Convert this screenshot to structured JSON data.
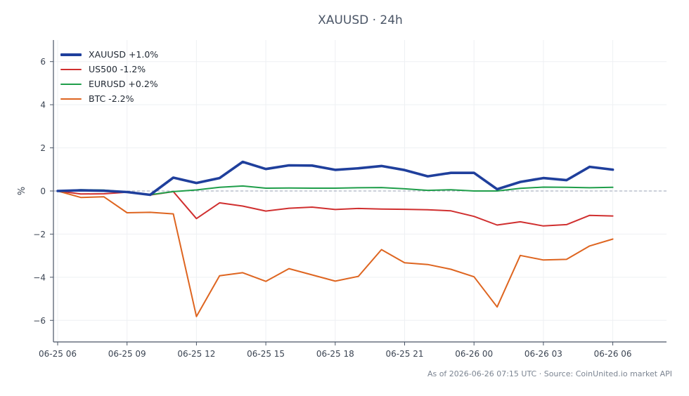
{
  "chart_data": {
    "type": "line",
    "title": "XAUUSD · 24h",
    "xlabel": "",
    "ylabel": "%",
    "ylim": [
      -7,
      7
    ],
    "grid": true,
    "legend_position": "top-left",
    "x_tick_labels": [
      "06-25 06",
      "06-25 09",
      "06-25 12",
      "06-25 15",
      "06-25 18",
      "06-25 21",
      "06-26 00",
      "06-26 03",
      "06-26 06"
    ],
    "y_ticks": [
      -6,
      -4,
      -2,
      0,
      2,
      4,
      6
    ],
    "y_tick_labels": [
      "−6",
      "−4",
      "−2",
      "0",
      "2",
      "4",
      "6"
    ],
    "x": [
      "06-25 07",
      "06-25 08",
      "06-25 09",
      "06-25 10",
      "06-25 11",
      "06-25 12",
      "06-25 13",
      "06-25 14",
      "06-25 15",
      "06-25 16",
      "06-25 17",
      "06-25 18",
      "06-25 19",
      "06-25 20",
      "06-25 21",
      "06-25 22",
      "06-25 23",
      "06-26 00",
      "06-26 01",
      "06-26 02",
      "06-26 03",
      "06-26 04",
      "06-26 05",
      "06-26 06",
      "06-26 07"
    ],
    "series": [
      {
        "name": "XAUUSD +1.0%",
        "color": "#1f3f9c",
        "values": [
          0,
          0.03,
          0.01,
          -0.05,
          -0.18,
          0.62,
          0.37,
          0.6,
          1.35,
          1.02,
          1.19,
          1.18,
          0.98,
          1.05,
          1.16,
          0.97,
          0.68,
          0.84,
          0.84,
          0.08,
          0.42,
          0.6,
          0.5,
          1.12,
          0.99
        ]
      },
      {
        "name": "US500 -1.2%",
        "color": "#d02f2f",
        "values": [
          0,
          -0.14,
          -0.13,
          -0.06,
          -0.19,
          -0.03,
          -1.28,
          -0.55,
          -0.7,
          -0.93,
          -0.8,
          -0.75,
          -0.86,
          -0.81,
          -0.84,
          -0.85,
          -0.87,
          -0.92,
          -1.18,
          -1.58,
          -1.43,
          -1.62,
          -1.56,
          -1.13,
          -1.16
        ]
      },
      {
        "name": "EURUSD +0.2%",
        "color": "#1f9e4a",
        "values": [
          0,
          0.06,
          0.04,
          -0.05,
          -0.17,
          -0.03,
          0.05,
          0.17,
          0.23,
          0.13,
          0.14,
          0.13,
          0.13,
          0.15,
          0.16,
          0.1,
          0.03,
          0.06,
          0.0,
          0.0,
          0.12,
          0.18,
          0.17,
          0.15,
          0.17
        ]
      },
      {
        "name": "BTC -2.2%",
        "color": "#de6520",
        "values": [
          0,
          -0.3,
          -0.27,
          -1.01,
          -0.99,
          -1.06,
          -5.82,
          -3.93,
          -3.79,
          -4.19,
          -3.6,
          -3.89,
          -4.18,
          -3.96,
          -2.72,
          -3.33,
          -3.41,
          -3.63,
          -3.98,
          -5.38,
          -2.99,
          -3.2,
          -3.17,
          -2.55,
          -2.23
        ]
      }
    ],
    "baseline_value": 0
  },
  "footer": {
    "text": "As of 2026-06-26 07:15 UTC · Source: CoinUnited.io market API"
  }
}
